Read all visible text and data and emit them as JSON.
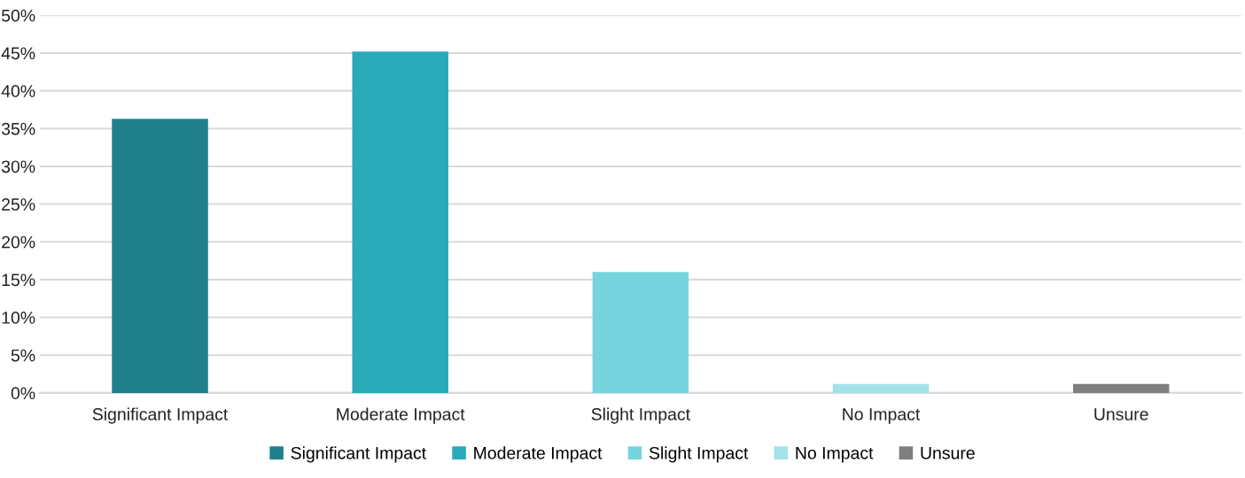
{
  "chart_data": {
    "type": "bar",
    "stacked": true,
    "categories": [
      "Significant Impact",
      "Moderate Impact",
      "Slight Impact",
      "No Impact",
      "Unsure"
    ],
    "series": [
      {
        "name": "Significant Impact",
        "color": "#1f7f8a",
        "values": [
          36.3,
          null,
          null,
          null,
          null
        ]
      },
      {
        "name": "Moderate Impact",
        "color": "#2aa9b8",
        "values": [
          null,
          45.2,
          null,
          null,
          null
        ]
      },
      {
        "name": "Slight Impact",
        "color": "#76d4de",
        "values": [
          null,
          null,
          16.0,
          null,
          null
        ]
      },
      {
        "name": "No Impact",
        "color": "#a3e2e9",
        "values": [
          null,
          null,
          null,
          1.2,
          null
        ]
      },
      {
        "name": "Unsure",
        "color": "#7f7f7f",
        "values": [
          null,
          null,
          null,
          null,
          1.2
        ]
      }
    ],
    "ylim": [
      0,
      50
    ],
    "yticks": [
      {
        "value": 0,
        "label": "0%"
      },
      {
        "value": 5,
        "label": "5%"
      },
      {
        "value": 10,
        "label": "10%"
      },
      {
        "value": 15,
        "label": "15%"
      },
      {
        "value": 20,
        "label": "20%"
      },
      {
        "value": 25,
        "label": "25%"
      },
      {
        "value": 30,
        "label": "30%"
      },
      {
        "value": 35,
        "label": "35%"
      },
      {
        "value": 40,
        "label": "40%"
      },
      {
        "value": 45,
        "label": "45%"
      },
      {
        "value": 50,
        "label": "50%"
      }
    ],
    "grid": "y",
    "legend": "bottom"
  }
}
